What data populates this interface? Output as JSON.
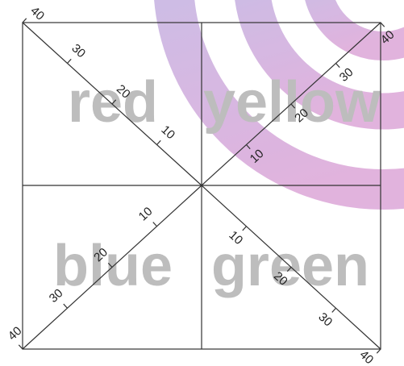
{
  "quadrants": [
    "red",
    "yellow",
    "blue",
    "green"
  ],
  "axes": [
    {
      "ticks": [
        10,
        20,
        30,
        40
      ]
    },
    {
      "ticks": [
        10,
        20,
        30,
        40
      ]
    },
    {
      "ticks": [
        10,
        20,
        30,
        40
      ]
    },
    {
      "ticks": [
        10,
        20,
        30,
        40
      ]
    }
  ]
}
